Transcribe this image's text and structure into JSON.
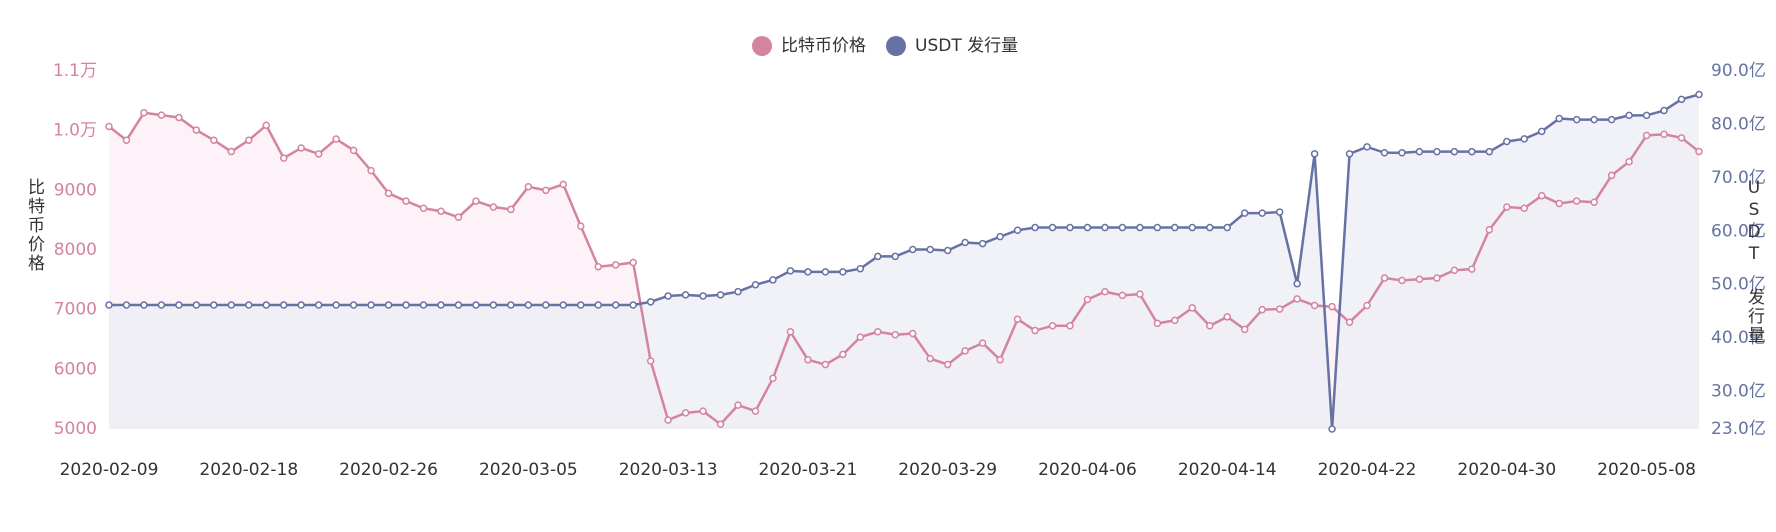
{
  "chart_data": {
    "type": "line",
    "y_axis_label": "比特币价格",
    "y2_axis_label": "USDT 发行量",
    "categories": [
      "2020-02-09",
      null,
      null,
      null,
      null,
      null,
      null,
      null,
      "2020-02-18",
      null,
      null,
      null,
      null,
      null,
      null,
      null,
      "2020-02-26",
      null,
      null,
      null,
      null,
      null,
      null,
      null,
      "2020-03-05",
      null,
      null,
      null,
      null,
      null,
      null,
      null,
      "2020-03-13",
      null,
      null,
      null,
      null,
      null,
      null,
      null,
      "2020-03-21",
      null,
      null,
      null,
      null,
      null,
      null,
      null,
      "2020-03-29",
      null,
      null,
      null,
      null,
      null,
      null,
      null,
      "2020-04-06",
      null,
      null,
      null,
      null,
      null,
      null,
      null,
      "2020-04-14",
      null,
      null,
      null,
      null,
      null,
      null,
      null,
      "2020-04-22",
      null,
      null,
      null,
      null,
      null,
      null,
      null,
      "2020-04-30",
      null,
      null,
      null,
      null,
      null,
      null,
      null,
      "2020-05-08",
      null,
      null,
      null
    ],
    "series": [
      {
        "name": "比特币价格",
        "color": "#d4849f",
        "area_color": "#fbeef4",
        "values": [
          10070,
          9840,
          10300,
          10260,
          10220,
          10010,
          9840,
          9650,
          9840,
          10090,
          9540,
          9710,
          9610,
          9860,
          9670,
          9330,
          8950,
          8820,
          8700,
          8650,
          8550,
          8820,
          8720,
          8680,
          9060,
          9000,
          9100,
          8400,
          7720,
          7750,
          7790,
          6140,
          5150,
          5270,
          5300,
          5080,
          5400,
          5300,
          5850,
          6630,
          6160,
          6080,
          6250,
          6540,
          6630,
          6580,
          6600,
          6180,
          6080,
          6310,
          6440,
          6160,
          6840,
          6650,
          6730,
          6730,
          7170,
          7300,
          7240,
          7260,
          6770,
          6820,
          7030,
          6730,
          6880,
          6670,
          7000,
          7010,
          7180,
          7070,
          7050,
          6790,
          7070,
          7530,
          7490,
          7510,
          7530,
          7660,
          7680,
          8340,
          8720,
          8700,
          8910,
          8780,
          8820,
          8800,
          9250,
          9480,
          9920,
          9940,
          9880,
          9650
        ]
      },
      {
        "name": "USDT 发行量",
        "color": "#6572a3",
        "area_color": "#eceef6",
        "axis": "y2",
        "values": [
          46.2,
          46.2,
          46.2,
          46.2,
          46.2,
          46.2,
          46.2,
          46.2,
          46.2,
          46.2,
          46.2,
          46.2,
          46.2,
          46.2,
          46.2,
          46.2,
          46.2,
          46.2,
          46.2,
          46.2,
          46.2,
          46.2,
          46.2,
          46.2,
          46.2,
          46.2,
          46.2,
          46.2,
          46.2,
          46.2,
          46.2,
          46.8,
          47.9,
          48.1,
          47.9,
          48.1,
          48.7,
          50.0,
          50.9,
          52.6,
          52.4,
          52.4,
          52.4,
          53.0,
          55.3,
          55.3,
          56.6,
          56.6,
          56.4,
          57.9,
          57.7,
          59.0,
          60.2,
          60.7,
          60.7,
          60.7,
          60.7,
          60.7,
          60.7,
          60.7,
          60.7,
          60.7,
          60.7,
          60.7,
          60.7,
          63.4,
          63.4,
          63.6,
          50.2,
          74.5,
          23.0,
          74.5,
          75.8,
          74.7,
          74.7,
          74.9,
          74.9,
          74.9,
          74.9,
          74.9,
          76.8,
          77.3,
          78.7,
          81.1,
          80.9,
          80.9,
          80.9,
          81.7,
          81.7,
          82.6,
          84.7,
          85.6
        ]
      }
    ],
    "ylim": [
      5000,
      11000
    ],
    "yticks": [
      5000,
      6000,
      7000,
      8000,
      9000,
      {
        "value": 10000,
        "label": "1.0万"
      },
      {
        "value": 11000,
        "label": "1.1万"
      }
    ],
    "y2lim": [
      23,
      90
    ],
    "y2ticks": [
      {
        "value": 23,
        "label": "23.0亿"
      },
      {
        "value": 30,
        "label": "30.0亿"
      },
      {
        "value": 40,
        "label": "40.0亿"
      },
      {
        "value": 50,
        "label": "50.0亿"
      },
      {
        "value": 60,
        "label": "60.0亿"
      },
      {
        "value": 70,
        "label": "70.0亿"
      },
      {
        "value": 80,
        "label": "80.0亿"
      },
      {
        "value": 90,
        "label": "90.0亿"
      }
    ],
    "legend": "top"
  }
}
